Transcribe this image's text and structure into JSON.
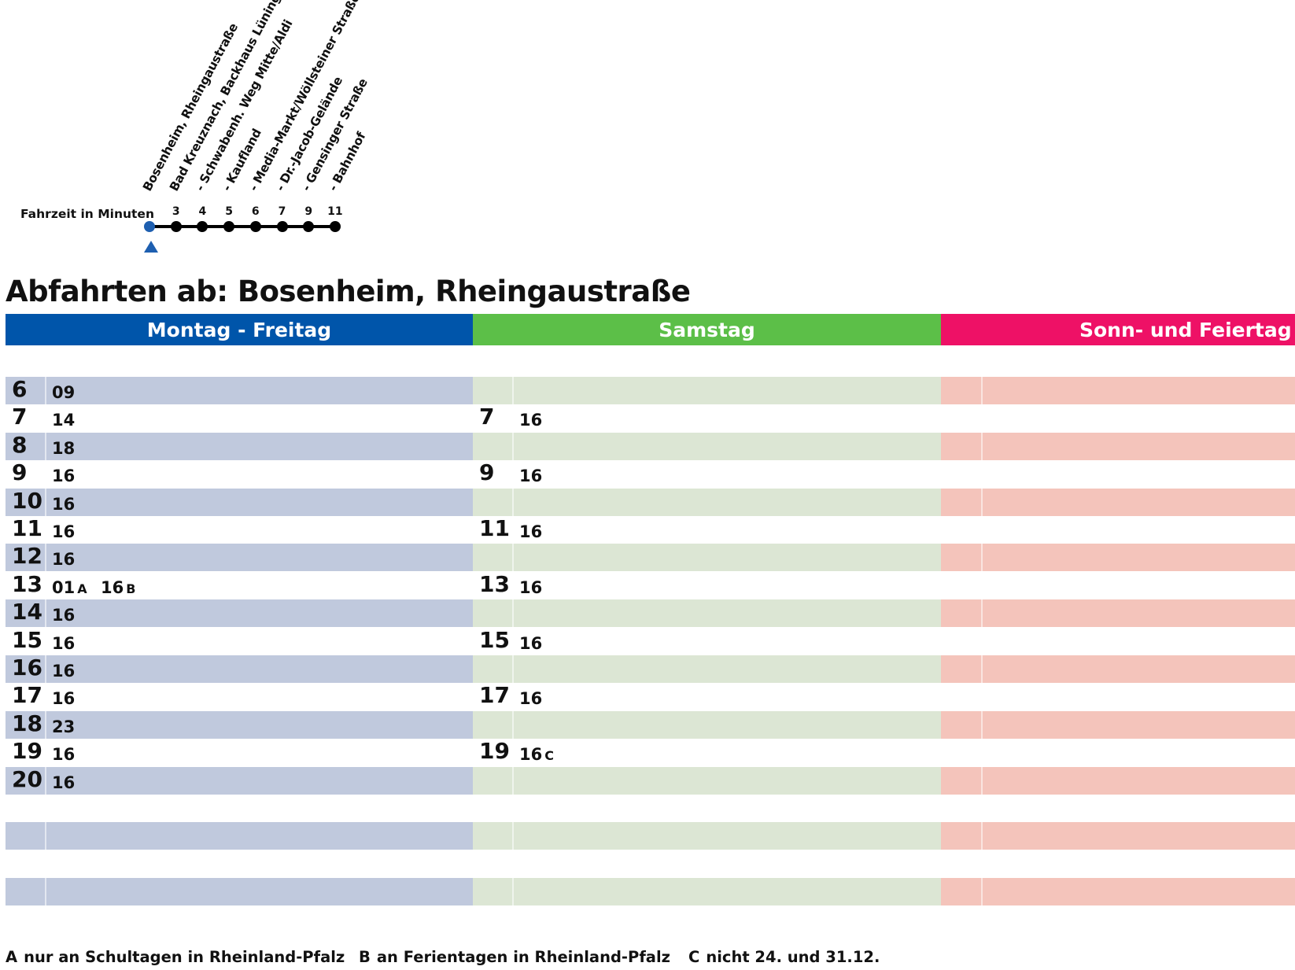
{
  "route": {
    "travel_time_label": "Fahrzeit in Minuten",
    "stops": [
      {
        "name": "Bosenheim, Rheingaustraße",
        "minutes": ""
      },
      {
        "name": "Bad Kreuznach, Backhaus Lüning",
        "minutes": "3"
      },
      {
        "name": "- Schwabenh. Weg Mitte/Aldi",
        "minutes": "4"
      },
      {
        "name": "- Kaufland",
        "minutes": "5"
      },
      {
        "name": "- Media-Markt/Wöllsteiner Straße",
        "minutes": "6"
      },
      {
        "name": "- Dr.-Jacob-Gelände",
        "minutes": "7"
      },
      {
        "name": "- Gensinger Straße",
        "minutes": "9"
      },
      {
        "name": "- Bahnhof",
        "minutes": "11"
      }
    ]
  },
  "title": "Abfahrten ab: Bosenheim, Rheingaustraße",
  "days": {
    "weekday": "Montag - Freitag",
    "saturday": "Samstag",
    "sunday": "Sonn- und Feiertag"
  },
  "colors": {
    "weekday": "#0055aa",
    "saturday": "#5cbf48",
    "sunday": "#ee1166"
  },
  "timetable": {
    "weekday": [
      {
        "hour": "6",
        "departures": [
          {
            "min": "09",
            "note": ""
          }
        ]
      },
      {
        "hour": "7",
        "departures": [
          {
            "min": "14",
            "note": ""
          }
        ]
      },
      {
        "hour": "8",
        "departures": [
          {
            "min": "18",
            "note": ""
          }
        ]
      },
      {
        "hour": "9",
        "departures": [
          {
            "min": "16",
            "note": ""
          }
        ]
      },
      {
        "hour": "10",
        "departures": [
          {
            "min": "16",
            "note": ""
          }
        ]
      },
      {
        "hour": "11",
        "departures": [
          {
            "min": "16",
            "note": ""
          }
        ]
      },
      {
        "hour": "12",
        "departures": [
          {
            "min": "16",
            "note": ""
          }
        ]
      },
      {
        "hour": "13",
        "departures": [
          {
            "min": "01",
            "note": "A"
          },
          {
            "min": "16",
            "note": "B"
          }
        ]
      },
      {
        "hour": "14",
        "departures": [
          {
            "min": "16",
            "note": ""
          }
        ]
      },
      {
        "hour": "15",
        "departures": [
          {
            "min": "16",
            "note": ""
          }
        ]
      },
      {
        "hour": "16",
        "departures": [
          {
            "min": "16",
            "note": ""
          }
        ]
      },
      {
        "hour": "17",
        "departures": [
          {
            "min": "16",
            "note": ""
          }
        ]
      },
      {
        "hour": "18",
        "departures": [
          {
            "min": "23",
            "note": ""
          }
        ]
      },
      {
        "hour": "19",
        "departures": [
          {
            "min": "16",
            "note": ""
          }
        ]
      },
      {
        "hour": "20",
        "departures": [
          {
            "min": "16",
            "note": ""
          }
        ]
      }
    ],
    "saturday": [
      {
        "hour": "7",
        "departures": [
          {
            "min": "16",
            "note": ""
          }
        ]
      },
      {
        "hour": "9",
        "departures": [
          {
            "min": "16",
            "note": ""
          }
        ]
      },
      {
        "hour": "11",
        "departures": [
          {
            "min": "16",
            "note": ""
          }
        ]
      },
      {
        "hour": "13",
        "departures": [
          {
            "min": "16",
            "note": ""
          }
        ]
      },
      {
        "hour": "15",
        "departures": [
          {
            "min": "16",
            "note": ""
          }
        ]
      },
      {
        "hour": "17",
        "departures": [
          {
            "min": "16",
            "note": ""
          }
        ]
      },
      {
        "hour": "19",
        "departures": [
          {
            "min": "16",
            "note": "C"
          }
        ]
      }
    ],
    "sunday": []
  },
  "footnotes": [
    {
      "key": "A",
      "text": "nur an Schultagen in Rheinland-Pfalz"
    },
    {
      "key": "B",
      "text": "an Ferientagen in Rheinland-Pfalz"
    },
    {
      "key": "C",
      "text": "nicht 24. und 31.12."
    }
  ]
}
